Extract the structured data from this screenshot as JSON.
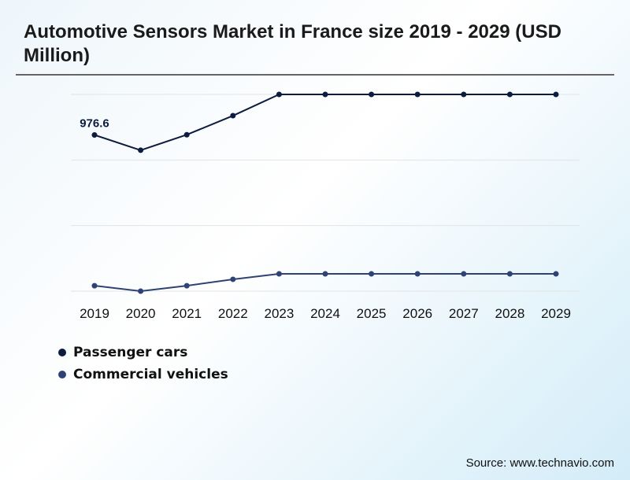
{
  "title": "Automotive Sensors Market in France size 2019 - 2029 (USD Million)",
  "source": "Source: www.technavio.com",
  "chart_data": {
    "type": "line",
    "title": "Automotive Sensors Market in France size 2019 - 2029 (USD Million)",
    "categories": [
      "2019",
      "2020",
      "2021",
      "2022",
      "2023",
      "2024",
      "2025",
      "2026",
      "2027",
      "2028",
      "2029"
    ],
    "ylim": [
      0,
      1230
    ],
    "grid": true,
    "legend_position": "bottom-left",
    "series": [
      {
        "name": "Passenger cars",
        "color": "#0d1b3e",
        "values": [
          976.6,
          881,
          978,
          1097,
          1230,
          1230,
          1230,
          1230,
          1230,
          1230,
          1230
        ]
      },
      {
        "name": "Commercial vehicles",
        "color": "#2e4374",
        "values": [
          34,
          0,
          34,
          74,
          108,
          108,
          108,
          108,
          108,
          108,
          108
        ]
      }
    ],
    "data_labels": [
      {
        "series": 0,
        "index": 0,
        "text": "976.6"
      }
    ]
  }
}
